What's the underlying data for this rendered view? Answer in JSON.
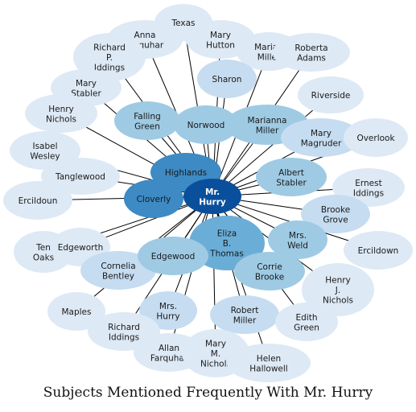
{
  "title": "Subjects Mentioned Frequently With Mr. Hurry",
  "colors": {
    "center": "#0a4f9c",
    "strong": "#3d8ac4",
    "medium": "#6aaed8",
    "light": "#9ecae4",
    "pale": "#c6dcf0",
    "faint": "#dde9f5",
    "edge": "#000000"
  },
  "center": {
    "id": "mr-hurry",
    "label": [
      "Mr.",
      "Hurry"
    ]
  },
  "nodes": [
    {
      "id": "texas",
      "label": [
        "Texas"
      ],
      "tier": "faint"
    },
    {
      "id": "anna-farquhar",
      "label": [
        "Anna",
        "Farquhar"
      ],
      "tier": "faint"
    },
    {
      "id": "mary-hutton",
      "label": [
        "Mary",
        "Hutton"
      ],
      "tier": "faint"
    },
    {
      "id": "marian-miller",
      "label": [
        "Marian",
        "Miller"
      ],
      "tier": "faint"
    },
    {
      "id": "roberta-adams",
      "label": [
        "Roberta",
        "Adams"
      ],
      "tier": "faint"
    },
    {
      "id": "richard-p-iddings",
      "label": [
        "Richard",
        "P.",
        "Iddings"
      ],
      "tier": "faint"
    },
    {
      "id": "sharon",
      "label": [
        "Sharon"
      ],
      "tier": "pale"
    },
    {
      "id": "riverside",
      "label": [
        "Riverside"
      ],
      "tier": "faint"
    },
    {
      "id": "mary-stabler",
      "label": [
        "Mary",
        "Stabler"
      ],
      "tier": "faint"
    },
    {
      "id": "henry-nichols",
      "label": [
        "Henry",
        "Nichols"
      ],
      "tier": "faint"
    },
    {
      "id": "falling-green",
      "label": [
        "Falling",
        "Green"
      ],
      "tier": "light"
    },
    {
      "id": "norwood",
      "label": [
        "Norwood"
      ],
      "tier": "light"
    },
    {
      "id": "marianna-miller",
      "label": [
        "Marianna",
        "Miller"
      ],
      "tier": "light"
    },
    {
      "id": "mary-magruder",
      "label": [
        "Mary",
        "Magruder"
      ],
      "tier": "pale"
    },
    {
      "id": "overlook",
      "label": [
        "Overlook"
      ],
      "tier": "faint"
    },
    {
      "id": "isabel-wesley",
      "label": [
        "Isabel",
        "Wesley"
      ],
      "tier": "faint"
    },
    {
      "id": "highlands",
      "label": [
        "Highlands"
      ],
      "tier": "strong"
    },
    {
      "id": "albert-stabler",
      "label": [
        "Albert",
        "Stabler"
      ],
      "tier": "light"
    },
    {
      "id": "ernest-iddings",
      "label": [
        "Ernest",
        "Iddings"
      ],
      "tier": "faint"
    },
    {
      "id": "tanglewood",
      "label": [
        "Tanglewood"
      ],
      "tier": "faint"
    },
    {
      "id": "ercildoun",
      "label": [
        "Ercildoun"
      ],
      "tier": "faint"
    },
    {
      "id": "cloverly",
      "label": [
        "Cloverly"
      ],
      "tier": "strong"
    },
    {
      "id": "brooke-grove",
      "label": [
        "Brooke",
        "Grove"
      ],
      "tier": "pale"
    },
    {
      "id": "ten-oaks",
      "label": [
        "Ten",
        "Oaks"
      ],
      "tier": "faint"
    },
    {
      "id": "edgeworth",
      "label": [
        "Edgeworth"
      ],
      "tier": "faint"
    },
    {
      "id": "eliza-b-thomas",
      "label": [
        "Eliza",
        "B.",
        "Thomas"
      ],
      "tier": "medium"
    },
    {
      "id": "mrs-weld",
      "label": [
        "Mrs.",
        "Weld"
      ],
      "tier": "light"
    },
    {
      "id": "ercildown",
      "label": [
        "Ercildown"
      ],
      "tier": "faint"
    },
    {
      "id": "cornelia-bentley",
      "label": [
        "Cornelia",
        "Bentley"
      ],
      "tier": "pale"
    },
    {
      "id": "edgewood",
      "label": [
        "Edgewood"
      ],
      "tier": "light"
    },
    {
      "id": "corrie-brooke",
      "label": [
        "Corrie",
        "Brooke"
      ],
      "tier": "light"
    },
    {
      "id": "henry-j-nichols",
      "label": [
        "Henry",
        "J.",
        "Nichols"
      ],
      "tier": "faint"
    },
    {
      "id": "maples",
      "label": [
        "Maples"
      ],
      "tier": "faint"
    },
    {
      "id": "mrs-hurry",
      "label": [
        "Mrs.",
        "Hurry"
      ],
      "tier": "pale"
    },
    {
      "id": "robert-miller",
      "label": [
        "Robert",
        "Miller"
      ],
      "tier": "pale"
    },
    {
      "id": "edith-green",
      "label": [
        "Edith",
        "Green"
      ],
      "tier": "faint"
    },
    {
      "id": "richard-iddings",
      "label": [
        "Richard",
        "Iddings"
      ],
      "tier": "faint"
    },
    {
      "id": "allan-farquhar",
      "label": [
        "Allan",
        "Farquhar"
      ],
      "tier": "faint"
    },
    {
      "id": "mary-m-nichols",
      "label": [
        "Mary",
        "M.",
        "Nichols"
      ],
      "tier": "faint"
    },
    {
      "id": "helen-hallowell",
      "label": [
        "Helen",
        "Hallowell"
      ],
      "tier": "faint"
    }
  ]
}
